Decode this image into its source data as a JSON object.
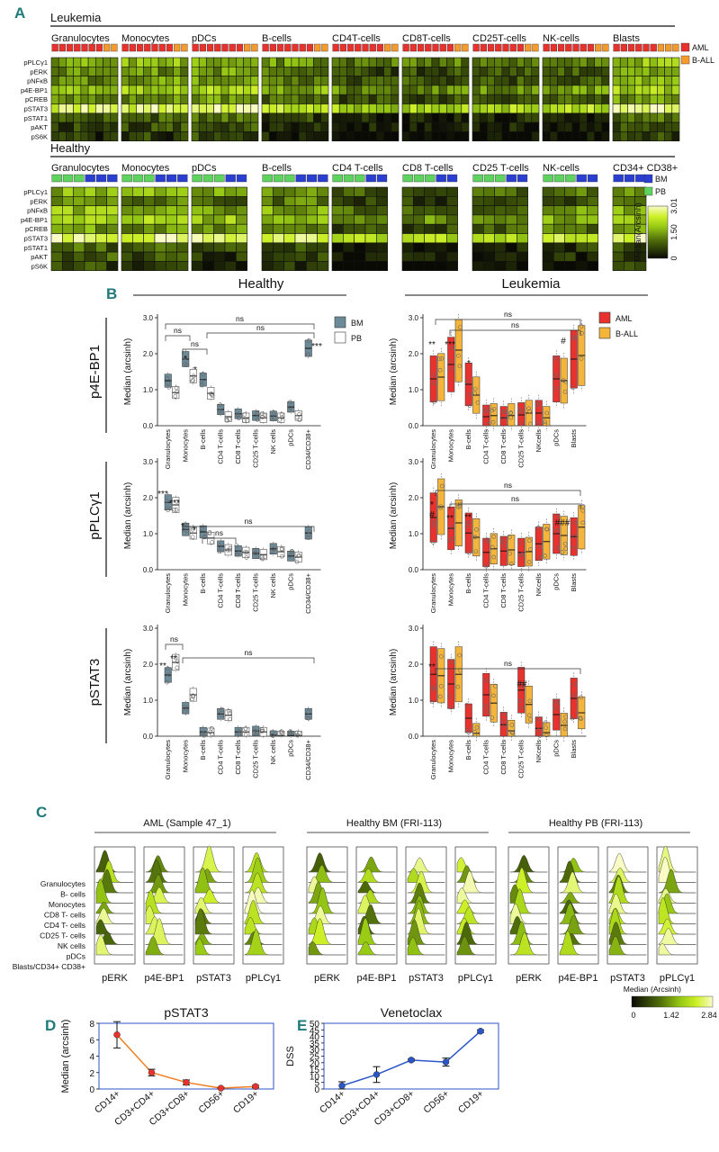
{
  "panel_labels": {
    "a": "A",
    "b": "B",
    "c": "C",
    "d": "D",
    "e": "E"
  },
  "panel_a": {
    "leukemia_title": "Leukemia",
    "healthy_title": "Healthy",
    "leukemia_groups": [
      "Granulocytes",
      "Monocytes",
      "pDCs",
      "B-cells",
      "CD4T-cells",
      "CD8T-cells",
      "CD25T-cells",
      "NK-cells",
      "Blasts"
    ],
    "healthy_groups": [
      "Granulocytes",
      "Monocytes",
      "pDCs",
      "B-cells",
      "CD4 T-cells",
      "CD8 T-cells",
      "CD25 T-cells",
      "NK-cells",
      "CD34+ CD38+"
    ],
    "markers": [
      "pPLCγ1",
      "pERK",
      "pNFκB",
      "p4E-BP1",
      "pCREB",
      "pSTAT3",
      "pSTAT1",
      "pAKT",
      "pS6K"
    ],
    "leukemia_legend": [
      {
        "label": "AML",
        "color": "#e8322e"
      },
      {
        "label": "B-ALL",
        "color": "#f59a2c"
      }
    ],
    "healthy_legend": [
      {
        "label": "BM",
        "color": "#2a3fd1"
      },
      {
        "label": "PB",
        "color": "#5fd35f"
      }
    ],
    "colorbar": {
      "label": "Median(Arcsinh)",
      "ticks": [
        "0",
        "1.50",
        "3.01"
      ]
    }
  },
  "panel_b": {
    "healthy_title": "Healthy",
    "leukemia_title": "Leukemia",
    "ylabel": "Median (arcsinh)",
    "y_ticks": [
      "0.0",
      "1.0",
      "2.0",
      "3.0"
    ],
    "healthy_categories": [
      "Granulocytes",
      "Monocytes",
      "B-cells",
      "CD4 T-cells",
      "CD8 T-cells",
      "CD25 T-cells",
      "NK cells",
      "pDCs",
      "CD34/CD38+"
    ],
    "leukemia_categories": [
      "Granulocytes",
      "Monocytes",
      "B-cells",
      "CD4 T-cells",
      "CD8 T-cells",
      "CD25 T-cells",
      "NKcells",
      "pDCs",
      "Blasts"
    ],
    "healthy_legend": [
      {
        "label": "BM",
        "color": "#6c8a98"
      },
      {
        "label": "PB",
        "color": "#ffffff"
      }
    ],
    "leukemia_legend": [
      {
        "label": "AML",
        "color": "#e8322e"
      },
      {
        "label": "B-ALL",
        "color": "#f5b53a"
      }
    ],
    "ns": "ns",
    "rows": [
      {
        "label": "p4E-BP1",
        "stars": [
          "*",
          "*",
          "***"
        ],
        "lstars": [
          "**",
          "***",
          "*",
          "#"
        ]
      },
      {
        "label": "pPLCγ1",
        "stars": [
          "***",
          "***",
          "*",
          "*"
        ],
        "lstars": [
          "*",
          "#",
          "**",
          "**",
          "###"
        ]
      },
      {
        "label": "pSTAT3",
        "stars": [
          "**",
          "**"
        ],
        "lstars": [
          "**",
          "##"
        ]
      }
    ]
  },
  "panel_c": {
    "groups": [
      {
        "title": "AML (Sample 47_1)",
        "cols": [
          "pERK",
          "p4E-BP1",
          "pSTAT3",
          "pPLCγ1"
        ]
      },
      {
        "title": "Healthy BM (FRI-113)",
        "cols": [
          "pERK",
          "p4E-BP1",
          "pSTAT3",
          "pPLCγ1"
        ]
      },
      {
        "title": "Healthy PB (FRI-113)",
        "cols": [
          "pERK",
          "p4E-BP1",
          "pSTAT3",
          "pPLCγ1"
        ]
      }
    ],
    "row_labels": [
      "Granulocytes",
      "B- cells",
      "Monocytes",
      "CD8 T- cells",
      "CD4 T- cells",
      "CD25 T- cells",
      "NK cells",
      "pDCs",
      "Blasts/CD34+ CD38+"
    ],
    "colorbar": {
      "label": "Median (Arcsinh)",
      "ticks": [
        "0",
        "1.42",
        "2.84"
      ]
    }
  },
  "chart_data": [
    {
      "type": "heatmap",
      "title": "Leukemia",
      "rows": [
        "pPLCγ1",
        "pERK",
        "pNFκB",
        "p4E-BP1",
        "pCREB",
        "pSTAT3",
        "pSTAT1",
        "pAKT",
        "pS6K"
      ],
      "groups": [
        "Granulocytes",
        "Monocytes",
        "pDCs",
        "B-cells",
        "CD4T-cells",
        "CD8T-cells",
        "CD25T-cells",
        "NK-cells",
        "Blasts"
      ],
      "row_levels": [
        1.3,
        0.9,
        1.0,
        1.5,
        0.9,
        2.2,
        0.5,
        0.3,
        0.1
      ],
      "group_offsets": [
        0.3,
        0.4,
        0.5,
        0.1,
        -0.2,
        -0.2,
        -0.2,
        -0.1,
        0.5
      ],
      "scale": [
        0,
        3.01
      ]
    },
    {
      "type": "heatmap",
      "title": "Healthy",
      "rows": [
        "pPLCγ1",
        "pERK",
        "pNFκB",
        "p4E-BP1",
        "pCREB",
        "pSTAT3",
        "pSTAT1",
        "pAKT",
        "pS6K"
      ],
      "groups": [
        "Granulocytes",
        "Monocytes",
        "pDCs",
        "B-cells",
        "CD4 T-cells",
        "CD8 T-cells",
        "CD25 T-cells",
        "NK-cells",
        "CD34+ CD38+"
      ],
      "row_levels": [
        1.2,
        0.8,
        1.3,
        1.6,
        1.0,
        2.3,
        0.4,
        0.3,
        0.1
      ],
      "group_offsets": [
        0.5,
        0.4,
        0.2,
        0.3,
        -0.3,
        -0.3,
        -0.2,
        0.0,
        0.4
      ],
      "scale": [
        0,
        3.01
      ]
    },
    {
      "type": "box",
      "title": "p4E-BP1 Healthy",
      "ylim": [
        0,
        3
      ],
      "categories": [
        "Granulocytes",
        "Monocytes",
        "B-cells",
        "CD4 T-cells",
        "CD8 T-cells",
        "CD25 T-cells",
        "NK cells",
        "pDCs",
        "CD34/CD38+"
      ],
      "series": [
        {
          "name": "BM",
          "values": [
            1.25,
            1.85,
            1.28,
            0.45,
            0.33,
            0.28,
            0.27,
            0.52,
            2.15
          ]
        },
        {
          "name": "PB",
          "values": [
            0.92,
            1.38,
            0.9,
            0.25,
            0.22,
            0.22,
            0.22,
            0.28,
            null
          ]
        }
      ]
    },
    {
      "type": "box",
      "title": "p4E-BP1 Leukemia",
      "ylim": [
        0,
        3
      ],
      "categories": [
        "Granulocytes",
        "Monocytes",
        "B-cells",
        "CD4 T-cells",
        "CD8 T-cells",
        "CD25 T-cells",
        "NKcells",
        "pDCs",
        "Blasts"
      ],
      "series": [
        {
          "name": "AML",
          "values": [
            1.3,
            1.7,
            1.15,
            0.25,
            0.22,
            0.3,
            0.35,
            1.3,
            1.85
          ]
        },
        {
          "name": "B-ALL",
          "values": [
            1.35,
            2.1,
            0.85,
            0.28,
            0.28,
            0.35,
            0.22,
            1.25,
            1.95
          ]
        }
      ]
    },
    {
      "type": "box",
      "title": "pPLCγ1 Healthy",
      "ylim": [
        0,
        3
      ],
      "categories": [
        "Granulocytes",
        "Monocytes",
        "B-cells",
        "CD4 T-cells",
        "CD8 T-cells",
        "CD25 T-cells",
        "NK cells",
        "pDCs",
        "CD34/CD38+"
      ],
      "series": [
        {
          "name": "BM",
          "values": [
            1.87,
            1.12,
            1.05,
            0.65,
            0.52,
            0.45,
            0.58,
            0.38,
            1.02
          ]
        },
        {
          "name": "PB",
          "values": [
            1.8,
            1.02,
            0.88,
            0.55,
            0.48,
            0.42,
            0.5,
            0.35,
            null
          ]
        }
      ]
    },
    {
      "type": "box",
      "title": "pPLCγ1 Leukemia",
      "ylim": [
        0,
        3
      ],
      "categories": [
        "Granulocytes",
        "Monocytes",
        "B-cells",
        "CD4 T-cells",
        "CD8 T-cells",
        "CD25 T-cells",
        "NKcells",
        "pDCs",
        "Blasts"
      ],
      "series": [
        {
          "name": "AML",
          "values": [
            1.45,
            1.15,
            1.02,
            0.48,
            0.52,
            0.48,
            0.72,
            1.0,
            0.92
          ]
        },
        {
          "name": "B-ALL",
          "values": [
            1.75,
            1.3,
            0.9,
            0.58,
            0.55,
            0.5,
            0.78,
            0.95,
            1.18
          ]
        }
      ]
    },
    {
      "type": "box",
      "title": "pSTAT3 Healthy",
      "ylim": [
        0,
        3
      ],
      "categories": [
        "Granulocytes",
        "Monocytes",
        "B-cells",
        "CD4 T-cells",
        "CD8 T-cells",
        "CD25 T-cells",
        "NK cells",
        "pDCs",
        "CD34/CD38+"
      ],
      "series": [
        {
          "name": "BM",
          "values": [
            1.7,
            0.78,
            0.12,
            0.62,
            0.12,
            0.15,
            0.03,
            0.02,
            0.62
          ]
        },
        {
          "name": "PB",
          "values": [
            2.05,
            1.15,
            0.1,
            0.58,
            0.12,
            0.12,
            0.02,
            0.02,
            null
          ]
        }
      ]
    },
    {
      "type": "box",
      "title": "pSTAT3 Leukemia",
      "ylim": [
        0,
        3
      ],
      "categories": [
        "Granulocytes",
        "Monocytes",
        "B-cells",
        "CD4 T-cells",
        "CD8 T-cells",
        "CD25 T-cells",
        "NKcells",
        "pDCs",
        "Blasts"
      ],
      "series": [
        {
          "name": "AML",
          "values": [
            1.72,
            1.45,
            0.5,
            1.15,
            0.32,
            1.28,
            0.22,
            0.6,
            1.05
          ]
        },
        {
          "name": "B-ALL",
          "values": [
            1.68,
            1.72,
            0.08,
            0.92,
            0.15,
            0.88,
            0.1,
            0.3,
            0.65
          ]
        }
      ]
    },
    {
      "type": "line",
      "title": "pSTAT3",
      "categories": [
        "CD14+",
        "CD3+CD4+",
        "CD3+CD8+",
        "CD56+",
        "CD19+"
      ],
      "values": [
        6.6,
        2.0,
        0.8,
        0.1,
        0.3
      ],
      "errors": [
        1.6,
        0.4,
        0.3,
        0.1,
        0.15
      ],
      "ylabel": "Median (arcsinh)",
      "ylim": [
        0,
        8
      ],
      "yticks": [
        "0",
        "2",
        "4",
        "6",
        "8"
      ],
      "color": "#ef7d22"
    },
    {
      "type": "line",
      "title": "Venetoclax",
      "categories": [
        "CD14+",
        "CD3+CD4+",
        "CD3+CD8+",
        "CD56+",
        "CD19+"
      ],
      "values": [
        2.5,
        11,
        22,
        20.5,
        44
      ],
      "errors": [
        3,
        6,
        0.8,
        3,
        1
      ],
      "ylabel": "DSS",
      "ylim": [
        0,
        50
      ],
      "yticks": [
        "0",
        "5",
        "10",
        "15",
        "20",
        "25",
        "30",
        "35",
        "40",
        "45",
        "50"
      ],
      "color": "#2b55c7"
    }
  ]
}
